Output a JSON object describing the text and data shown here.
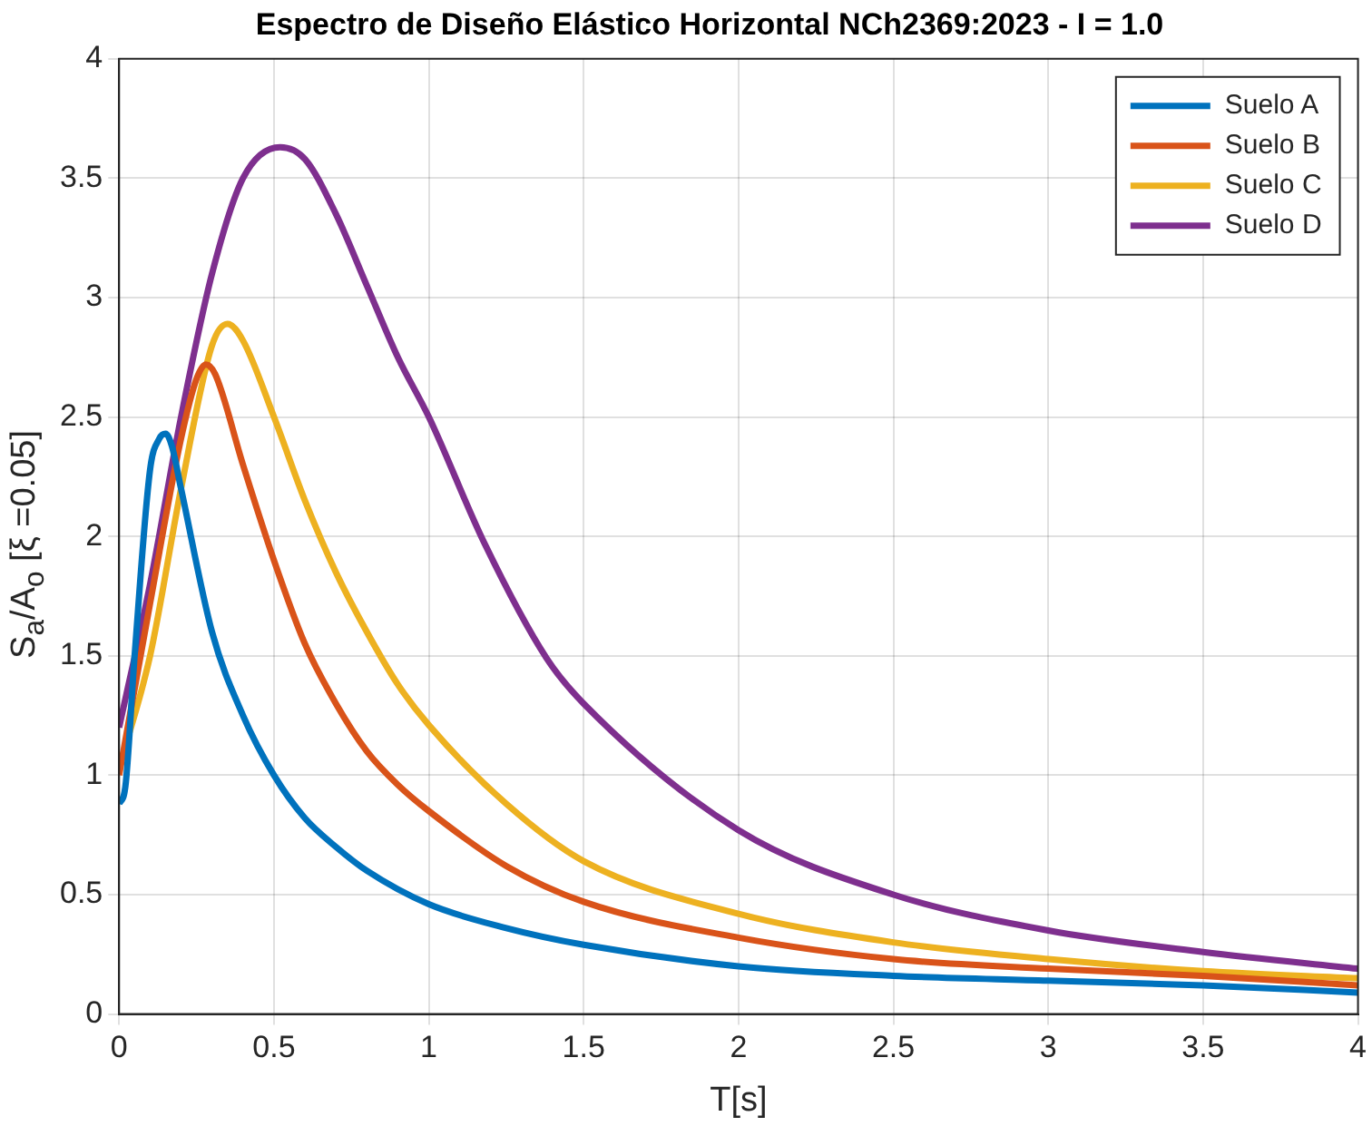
{
  "chart_data": {
    "type": "line",
    "title": "Espectro de Diseño Elástico Horizontal NCh2369:2023 - I = 1.0",
    "xlabel": "T[s]",
    "ylabel": "S$_{a}$/A$_{o}$ [ξ =0.05]",
    "xlim": [
      0,
      4
    ],
    "ylim": [
      0,
      4
    ],
    "xticks": [
      0,
      0.5,
      1,
      1.5,
      2,
      2.5,
      3,
      3.5,
      4
    ],
    "yticks": [
      0,
      0.5,
      1,
      1.5,
      2,
      2.5,
      3,
      3.5,
      4
    ],
    "grid": true,
    "legend": "top right",
    "marker": "none",
    "line_style": "solid",
    "series": [
      {
        "name": "Suelo A",
        "color": "#0072bd",
        "x": [
          0,
          0.02,
          0.05,
          0.1,
          0.13,
          0.15,
          0.17,
          0.2,
          0.3,
          0.4,
          0.5,
          0.6,
          0.7,
          0.8,
          1,
          1.25,
          1.5,
          2,
          2.5,
          3,
          3.5,
          4
        ],
        "values": [
          0.88,
          0.95,
          1.5,
          2.28,
          2.41,
          2.43,
          2.38,
          2.2,
          1.6,
          1.25,
          1.0,
          0.82,
          0.7,
          0.6,
          0.46,
          0.36,
          0.29,
          0.2,
          0.16,
          0.14,
          0.12,
          0.09
        ]
      },
      {
        "name": "Suelo B",
        "color": "#d95319",
        "x": [
          0,
          0.1,
          0.2,
          0.25,
          0.28,
          0.31,
          0.4,
          0.5,
          0.6,
          0.7,
          0.8,
          0.9,
          1,
          1.25,
          1.5,
          2,
          2.5,
          3,
          3.5,
          4
        ],
        "values": [
          1.0,
          1.72,
          2.41,
          2.66,
          2.72,
          2.68,
          2.3,
          1.9,
          1.55,
          1.3,
          1.1,
          0.96,
          0.85,
          0.62,
          0.47,
          0.32,
          0.23,
          0.19,
          0.16,
          0.12
        ]
      },
      {
        "name": "Suelo C",
        "color": "#edb120",
        "x": [
          0,
          0.1,
          0.2,
          0.3,
          0.35,
          0.4,
          0.5,
          0.6,
          0.7,
          0.8,
          0.9,
          1,
          1.25,
          1.5,
          2,
          2.5,
          3,
          3.5,
          4
        ],
        "values": [
          1.03,
          1.5,
          2.2,
          2.8,
          2.89,
          2.82,
          2.5,
          2.15,
          1.85,
          1.6,
          1.38,
          1.21,
          0.88,
          0.64,
          0.42,
          0.3,
          0.23,
          0.18,
          0.15
        ]
      },
      {
        "name": "Suelo D",
        "color": "#7e2f8e",
        "x": [
          0,
          0.1,
          0.2,
          0.3,
          0.4,
          0.52,
          0.6,
          0.7,
          0.8,
          0.9,
          1,
          1.18,
          1.38,
          1.5,
          2,
          2.5,
          3,
          3.5,
          4
        ],
        "values": [
          1.2,
          1.8,
          2.5,
          3.1,
          3.5,
          3.63,
          3.58,
          3.35,
          3.05,
          2.75,
          2.5,
          1.97,
          1.49,
          1.3,
          0.77,
          0.5,
          0.35,
          0.26,
          0.19
        ]
      }
    ]
  }
}
